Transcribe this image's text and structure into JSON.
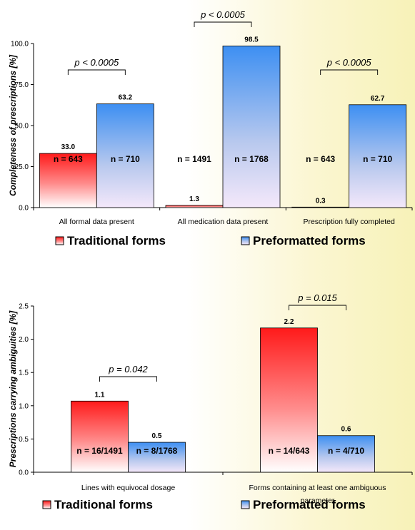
{
  "chart_data": [
    {
      "type": "bar",
      "ylabel": "Completeness of prescriptions [%]",
      "ylim": [
        0,
        100
      ],
      "yticks": [
        "0.0",
        "25.0",
        "50.0",
        "75.0",
        "100.0"
      ],
      "categories": [
        "All formal data present",
        "All medication data present",
        "Prescription fully completed"
      ],
      "series": [
        {
          "name": "Traditional forms",
          "values": [
            33.0,
            1.3,
            0.3
          ],
          "labels": [
            "33.0",
            "1.3",
            "0.3"
          ],
          "n": [
            "n = 643",
            "n = 1491",
            "n = 643"
          ],
          "color": "#ff1a1a"
        },
        {
          "name": "Preformatted forms",
          "values": [
            63.2,
            98.5,
            62.7
          ],
          "labels": [
            "63.2",
            "98.5",
            "62.7"
          ],
          "n": [
            "n = 710",
            "n = 1768",
            "n = 710"
          ],
          "color": "#3d8ff2"
        }
      ],
      "p_values": [
        "p < 0.0005",
        "p < 0.0005",
        "p < 0.0005"
      ],
      "grid": false,
      "legend_position": "bottom"
    },
    {
      "type": "bar",
      "ylabel": "Prescriptions carrying ambiguities [%]",
      "ylim": [
        0,
        2.5
      ],
      "yticks": [
        "0.0",
        "0.5",
        "1.0",
        "1.5",
        "2.0",
        "2.5"
      ],
      "categories": [
        "Lines with equivocal dosage",
        "Forms containing at least one ambiguous parameter"
      ],
      "series": [
        {
          "name": "Traditional forms",
          "values": [
            1.07,
            2.17
          ],
          "labels": [
            "1.1",
            "2.2"
          ],
          "n": [
            "n = 16/1491",
            "n = 14/643"
          ],
          "color": "#ff1a1a"
        },
        {
          "name": "Preformatted forms",
          "values": [
            0.45,
            0.55
          ],
          "labels": [
            "0.5",
            "0.6"
          ],
          "n": [
            "n = 8/1768",
            "n = 4/710"
          ],
          "color": "#3d8ff2"
        }
      ],
      "p_values": [
        "p = 0.042",
        "p = 0.015"
      ],
      "grid": false,
      "legend_position": "bottom"
    }
  ]
}
